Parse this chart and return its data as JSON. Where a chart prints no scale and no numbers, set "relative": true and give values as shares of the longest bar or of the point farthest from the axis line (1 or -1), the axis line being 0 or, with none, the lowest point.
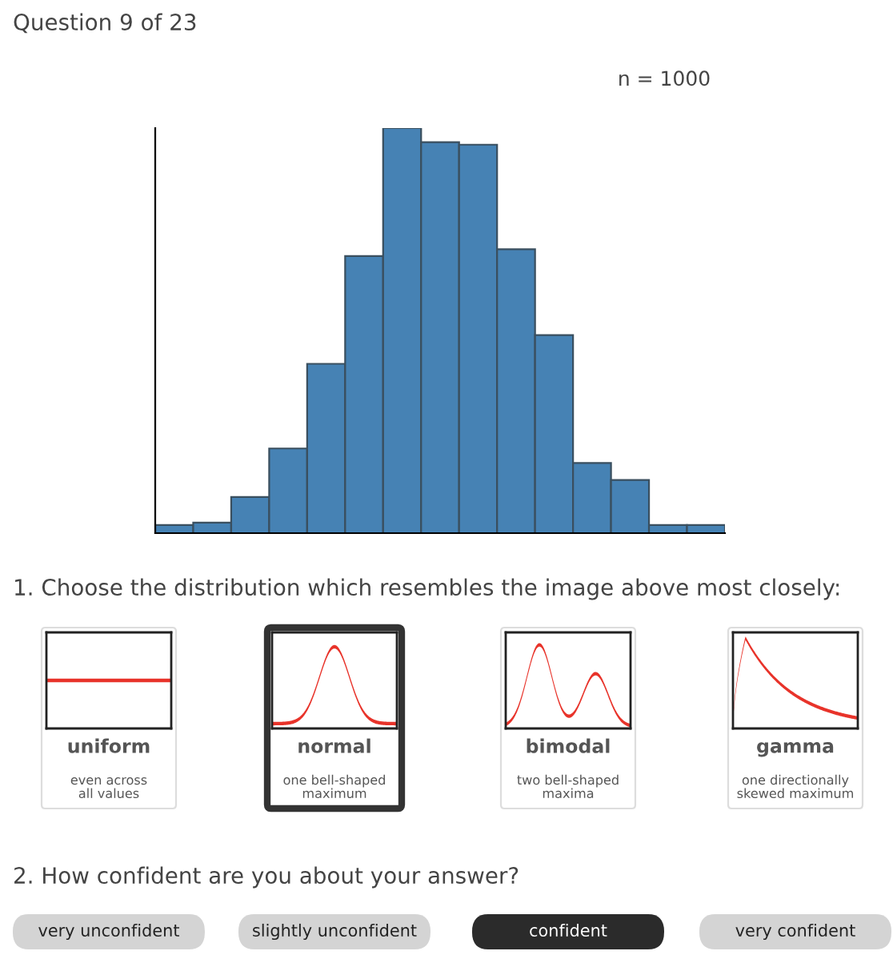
{
  "chart_data": {
    "type": "bar",
    "relative": true,
    "title": "Question 9 of 23",
    "categories": [
      null,
      null,
      null,
      null,
      null,
      null,
      null,
      null,
      null,
      null,
      null,
      null,
      null,
      null,
      null
    ],
    "values": [
      0.02,
      0.026,
      0.089,
      0.209,
      0.418,
      0.684,
      1,
      0.965,
      0.959,
      0.701,
      0.489,
      0.173,
      0.131,
      0.02,
      0.02
    ],
    "color": "#4682b4",
    "annotations": [
      "n = 1000",
      "1. Choose the distribution which resembles the image above most closely:",
      "uniform",
      "even across\nall values",
      "normal",
      "one bell-shaped\nmaximum",
      "bimodal",
      "two bell-shaped\nmaxima",
      "gamma",
      "one directionally\nskewed maximum",
      "2. How confident are you about your answer?",
      "very unconfident",
      "slightly unconfident",
      "confident",
      "very confident"
    ]
  }
}
